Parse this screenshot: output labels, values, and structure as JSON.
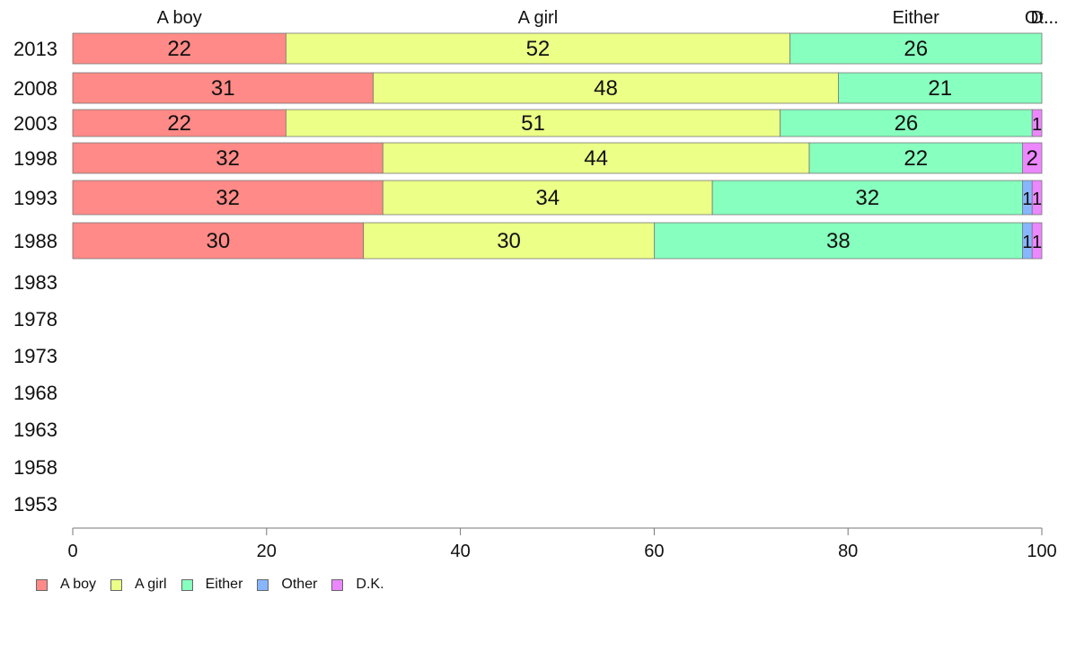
{
  "chart_data": {
    "type": "bar",
    "orientation": "horizontal",
    "stacked": true,
    "title": "",
    "xlabel": "",
    "ylabel": "",
    "xlim": [
      0,
      100
    ],
    "x_ticks": [
      0,
      20,
      40,
      60,
      80,
      100
    ],
    "categories": [
      "2013",
      "2008",
      "2003",
      "1998",
      "1993",
      "1988",
      "1983",
      "1978",
      "1973",
      "1968",
      "1963",
      "1958",
      "1953"
    ],
    "series": [
      {
        "name": "A boy",
        "color": "#ff8a87",
        "values": [
          22,
          31,
          22,
          32,
          32,
          30,
          null,
          null,
          null,
          null,
          null,
          null,
          null
        ]
      },
      {
        "name": "A girl",
        "color": "#ecff87",
        "values": [
          52,
          48,
          51,
          44,
          34,
          30,
          null,
          null,
          null,
          null,
          null,
          null,
          null
        ]
      },
      {
        "name": "Either",
        "color": "#87ffbe",
        "values": [
          26,
          21,
          26,
          22,
          32,
          38,
          null,
          null,
          null,
          null,
          null,
          null,
          null
        ]
      },
      {
        "name": "Other",
        "color": "#87b6ff",
        "values": [
          0,
          0,
          0,
          0,
          1,
          1,
          null,
          null,
          null,
          null,
          null,
          null,
          null
        ]
      },
      {
        "name": "D.K.",
        "color": "#ec87ff",
        "values": [
          0,
          0,
          1,
          2,
          1,
          1,
          null,
          null,
          null,
          null,
          null,
          null,
          null
        ]
      }
    ],
    "top_labels": [
      "A boy",
      "A girl",
      "Either",
      "Ot..",
      "D..."
    ],
    "grid": false,
    "legend_position": "bottom-left"
  }
}
